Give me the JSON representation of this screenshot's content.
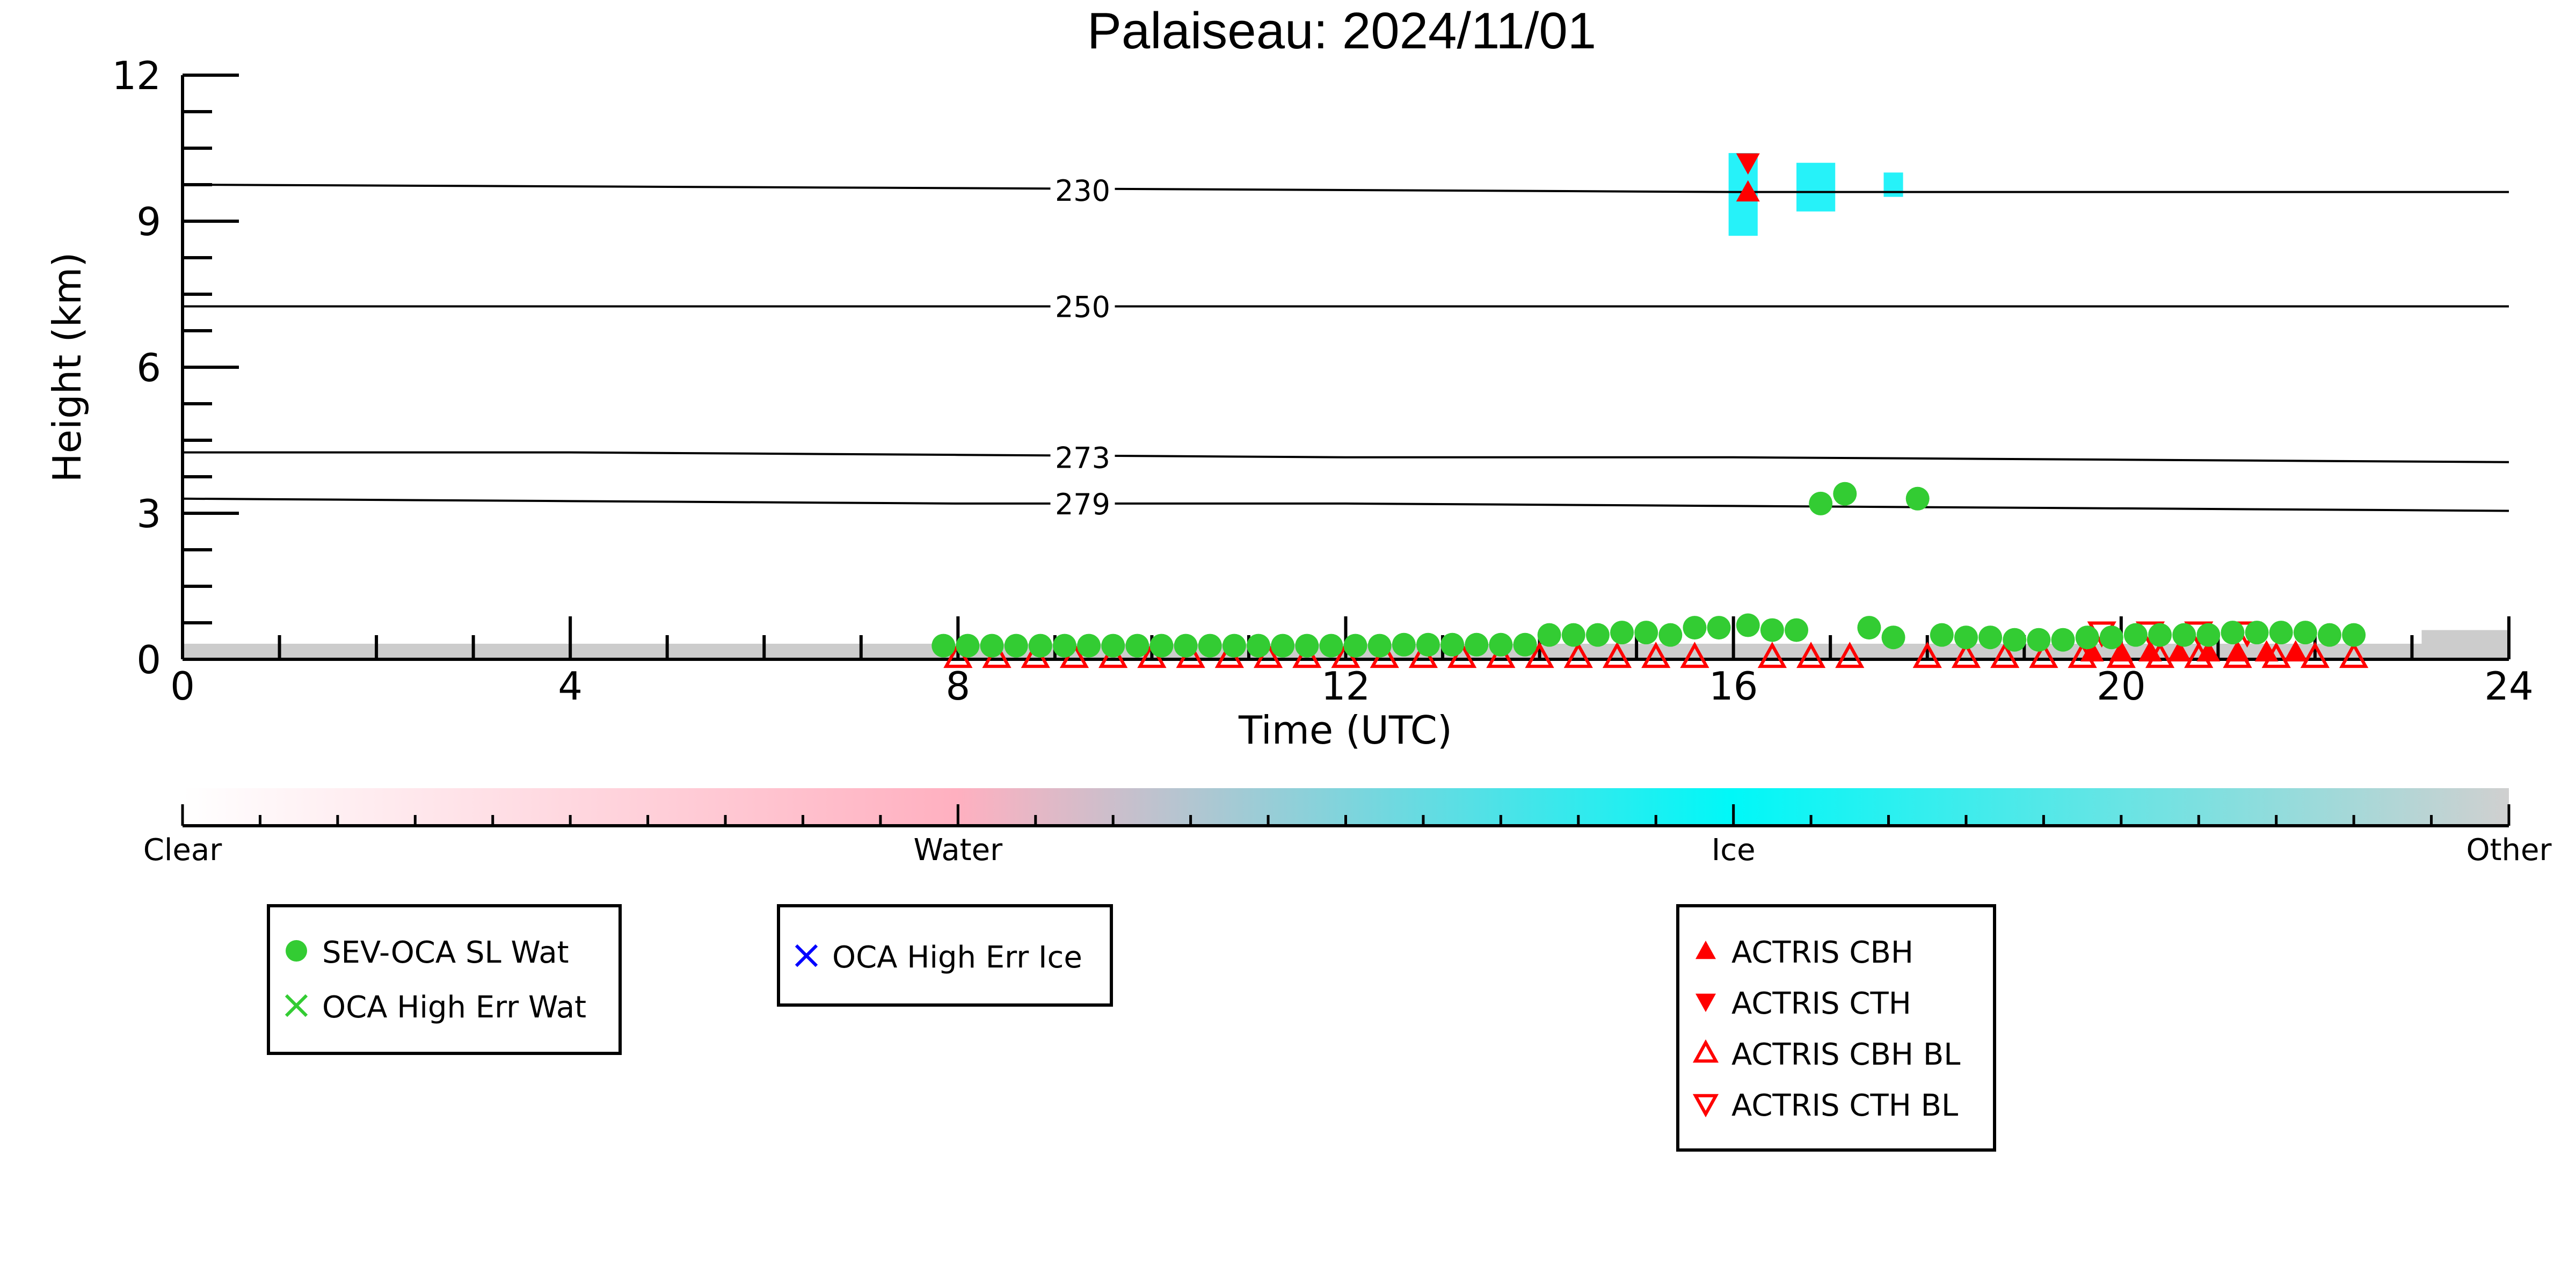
{
  "chart_data": {
    "type": "scatter",
    "title": "Palaiseau: 2024/11/01",
    "xlabel": "Time (UTC)",
    "ylabel": "Height (km)",
    "xlim": [
      0,
      24
    ],
    "ylim": [
      0,
      12
    ],
    "x_ticks": [
      "0",
      "4",
      "8",
      "12",
      "16",
      "20",
      "24"
    ],
    "y_ticks": [
      "0",
      "3",
      "6",
      "9",
      "12"
    ],
    "grid": false,
    "colors": {
      "water_marker": "#33cc33",
      "ice_marker": "#0000ff",
      "actris": "#ff0000",
      "ice_cloud": "#00f0f8",
      "background_signal": "#cccccc",
      "contour": "#000000"
    },
    "contours": [
      {
        "label": "230",
        "x": [
          0,
          8,
          16,
          24
        ],
        "y": [
          9.75,
          9.68,
          9.6,
          9.6
        ]
      },
      {
        "label": "250",
        "x": [
          0,
          8,
          16,
          24
        ],
        "y": [
          7.25,
          7.25,
          7.25,
          7.25
        ]
      },
      {
        "label": "273",
        "x": [
          0,
          4,
          8,
          12,
          16,
          20,
          24
        ],
        "y": [
          4.25,
          4.25,
          4.2,
          4.15,
          4.15,
          4.1,
          4.05
        ]
      },
      {
        "label": "279",
        "x": [
          0,
          4,
          8,
          12,
          16,
          20,
          24
        ],
        "y": [
          3.3,
          3.25,
          3.2,
          3.2,
          3.15,
          3.1,
          3.05
        ]
      }
    ],
    "ice_clouds": [
      {
        "x0": 15.95,
        "x1": 16.25,
        "y0": 8.7,
        "y1": 10.4
      },
      {
        "x0": 16.65,
        "x1": 17.05,
        "y0": 9.2,
        "y1": 10.2
      },
      {
        "x0": 17.55,
        "x1": 17.75,
        "y0": 9.5,
        "y1": 10.0
      }
    ],
    "series": [
      {
        "name": "SEV-OCA SL Wat",
        "marker": "filled-circle",
        "x": [
          7.85,
          8.1,
          8.35,
          8.6,
          8.85,
          9.1,
          9.35,
          9.6,
          9.85,
          10.1,
          10.35,
          10.6,
          10.85,
          11.1,
          11.35,
          11.6,
          11.85,
          12.1,
          12.35,
          12.6,
          12.85,
          13.1,
          13.35,
          13.6,
          13.85,
          14.1,
          14.35,
          14.6,
          14.85,
          15.1,
          15.35,
          15.6,
          15.85,
          16.15,
          16.4,
          16.65,
          16.9,
          17.15,
          17.4,
          17.65,
          17.9,
          18.15,
          18.4,
          18.65,
          18.9,
          19.15,
          19.4,
          19.65,
          19.9,
          20.15,
          20.4,
          20.65,
          20.9,
          21.15,
          21.4,
          21.65,
          21.9,
          22.15,
          22.4
        ],
        "y": [
          0.28,
          0.28,
          0.28,
          0.28,
          0.28,
          0.28,
          0.28,
          0.28,
          0.28,
          0.28,
          0.28,
          0.28,
          0.28,
          0.28,
          0.28,
          0.28,
          0.28,
          0.28,
          0.28,
          0.3,
          0.3,
          0.3,
          0.3,
          0.3,
          0.3,
          0.5,
          0.5,
          0.5,
          0.55,
          0.55,
          0.5,
          0.65,
          0.65,
          0.7,
          0.6,
          0.6,
          3.2,
          3.4,
          0.65,
          0.45,
          3.3,
          0.5,
          0.45,
          0.45,
          0.4,
          0.4,
          0.4,
          0.45,
          0.45,
          0.5,
          0.5,
          0.5,
          0.5,
          0.55,
          0.55,
          0.55,
          0.55,
          0.5,
          0.5
        ]
      },
      {
        "name": "OCA High Err Wat",
        "marker": "x",
        "x": [],
        "y": []
      },
      {
        "name": "OCA High Err Ice",
        "marker": "x",
        "x": [],
        "y": []
      },
      {
        "name": "ACTRIS CBH",
        "marker": "filled-triangle-up",
        "x": [
          16.15,
          19.7,
          20.0,
          20.3,
          20.6,
          20.9,
          21.2,
          21.5,
          21.8
        ],
        "y": [
          9.6,
          0.15,
          0.15,
          0.15,
          0.15,
          0.15,
          0.15,
          0.15,
          0.15
        ]
      },
      {
        "name": "ACTRIS CTH",
        "marker": "filled-triangle-down",
        "x": [
          16.15
        ],
        "y": [
          10.2
        ]
      },
      {
        "name": "ACTRIS CBH BL",
        "marker": "open-triangle-up",
        "x": [
          8.0,
          8.4,
          8.8,
          9.2,
          9.6,
          10.0,
          10.4,
          10.8,
          11.2,
          11.6,
          12.0,
          12.4,
          12.8,
          13.2,
          13.6,
          14.0,
          14.4,
          14.8,
          15.2,
          15.6,
          16.4,
          16.8,
          17.2,
          18.0,
          18.4,
          18.8,
          19.2,
          19.6,
          20.0,
          20.4,
          20.8,
          21.2,
          21.6,
          22.0,
          22.4
        ],
        "y": [
          0.05,
          0.05,
          0.05,
          0.05,
          0.05,
          0.05,
          0.05,
          0.05,
          0.05,
          0.05,
          0.05,
          0.05,
          0.05,
          0.05,
          0.05,
          0.05,
          0.05,
          0.05,
          0.05,
          0.05,
          0.05,
          0.05,
          0.05,
          0.05,
          0.05,
          0.05,
          0.05,
          0.05,
          0.05,
          0.05,
          0.05,
          0.05,
          0.05,
          0.05,
          0.05
        ]
      },
      {
        "name": "ACTRIS CTH BL",
        "marker": "open-triangle-down",
        "x": [
          19.8,
          20.3,
          20.8,
          21.3
        ],
        "y": [
          0.55,
          0.55,
          0.55,
          0.55
        ]
      }
    ],
    "colorbar": {
      "labels": [
        "Clear",
        "Water",
        "Ice",
        "Other"
      ],
      "stops": [
        "#ffffff",
        "#ffb0c0",
        "#00f8f8",
        "#d0d0d0"
      ]
    },
    "legends": [
      [
        "SEV-OCA SL Wat",
        "OCA High Err Wat"
      ],
      [
        "OCA High Err Ice"
      ],
      [
        "ACTRIS CBH",
        "ACTRIS CTH",
        "ACTRIS CBH BL",
        "ACTRIS CTH BL"
      ]
    ]
  }
}
